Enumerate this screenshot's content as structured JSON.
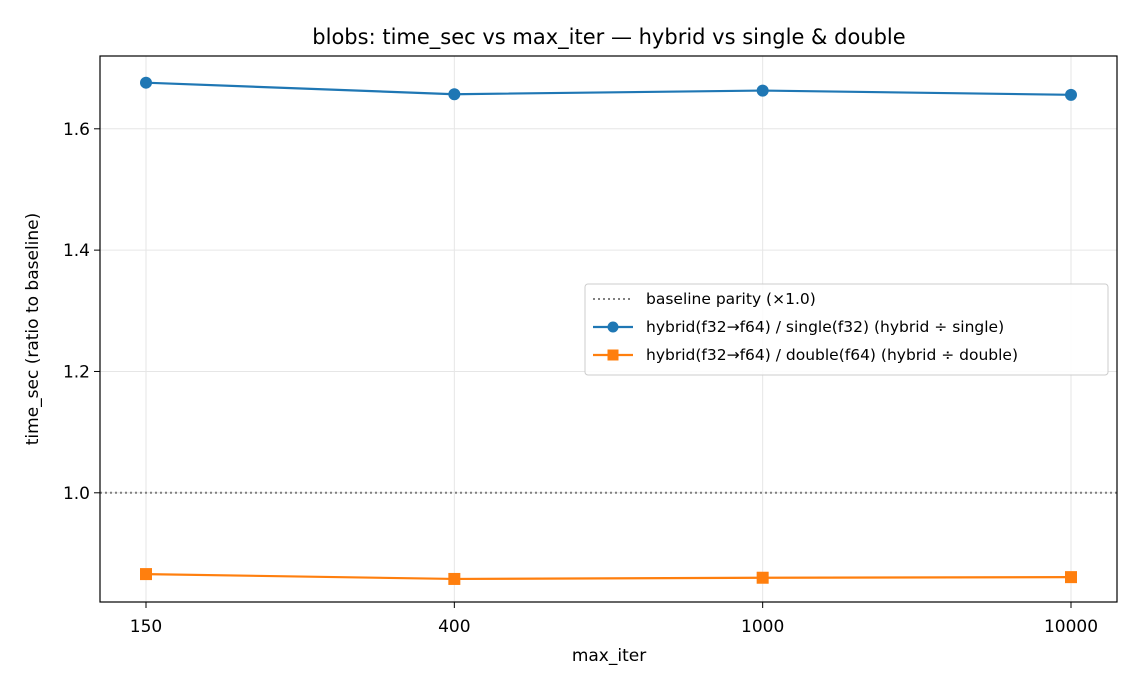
{
  "chart_data": {
    "type": "line",
    "title": "blobs: time_sec vs max_iter — hybrid vs single & double",
    "xlabel": "max_iter",
    "ylabel": "time_sec (ratio to baseline)",
    "categories": [
      "150",
      "400",
      "1000",
      "10000"
    ],
    "yticks": [
      "1.0",
      "1.2",
      "1.4",
      "1.6"
    ],
    "ytick_values": [
      1.0,
      1.2,
      1.4,
      1.6
    ],
    "ylim": [
      0.82,
      1.72
    ],
    "grid": true,
    "legend_position": "center-right",
    "baseline": {
      "name": "baseline parity (×1.0)",
      "value": 1.0,
      "color": "#808080",
      "style": "dotted"
    },
    "series": [
      {
        "name": "hybrid(f32→f64) / single(f32)  (hybrid ÷ single)",
        "values": [
          1.676,
          1.657,
          1.663,
          1.656
        ],
        "color": "#1f77b4",
        "marker": "circle"
      },
      {
        "name": "hybrid(f32→f64) / double(f64)  (hybrid ÷ double)",
        "values": [
          0.866,
          0.858,
          0.86,
          0.861
        ],
        "color": "#ff7f0e",
        "marker": "square"
      }
    ]
  }
}
